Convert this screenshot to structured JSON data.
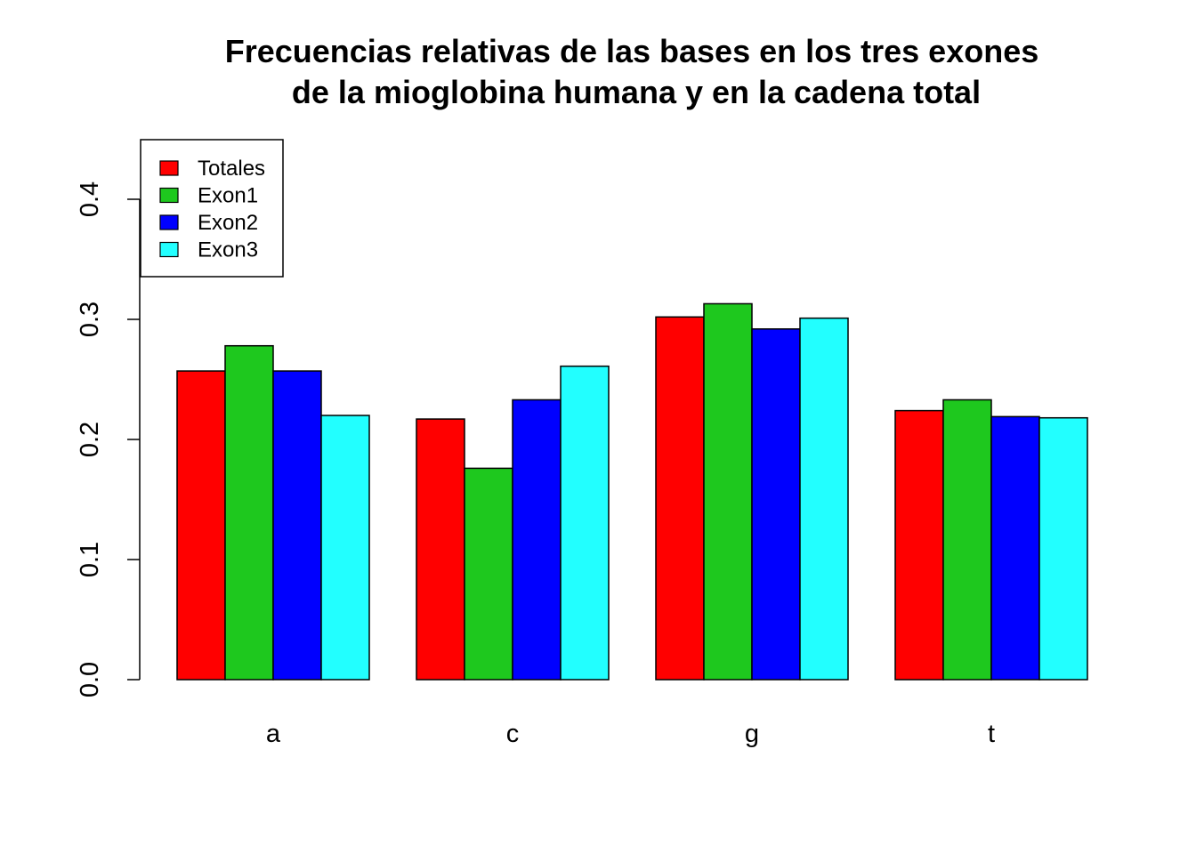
{
  "chart_data": {
    "type": "bar",
    "title": "Frecuencias relativas de las bases en los tres exones",
    "subtitle": "de la mioglobina humana y en la cadena total",
    "xlabel": "",
    "ylabel": "",
    "categories": [
      "a",
      "c",
      "g",
      "t"
    ],
    "series": [
      {
        "name": "Totales",
        "color": "#ff0000",
        "values": [
          0.257,
          0.217,
          0.302,
          0.224
        ]
      },
      {
        "name": "Exon1",
        "color": "#1ec81e",
        "values": [
          0.278,
          0.176,
          0.313,
          0.233
        ]
      },
      {
        "name": "Exon2",
        "color": "#0000ff",
        "values": [
          0.257,
          0.233,
          0.292,
          0.219
        ]
      },
      {
        "name": "Exon3",
        "color": "#22ffff",
        "values": [
          0.22,
          0.261,
          0.301,
          0.218
        ]
      }
    ],
    "yticks": [
      "0.0",
      "0.1",
      "0.2",
      "0.3",
      "0.4"
    ],
    "ylim": [
      0,
      0.45
    ],
    "legend_position": "top-left",
    "grid": false
  }
}
